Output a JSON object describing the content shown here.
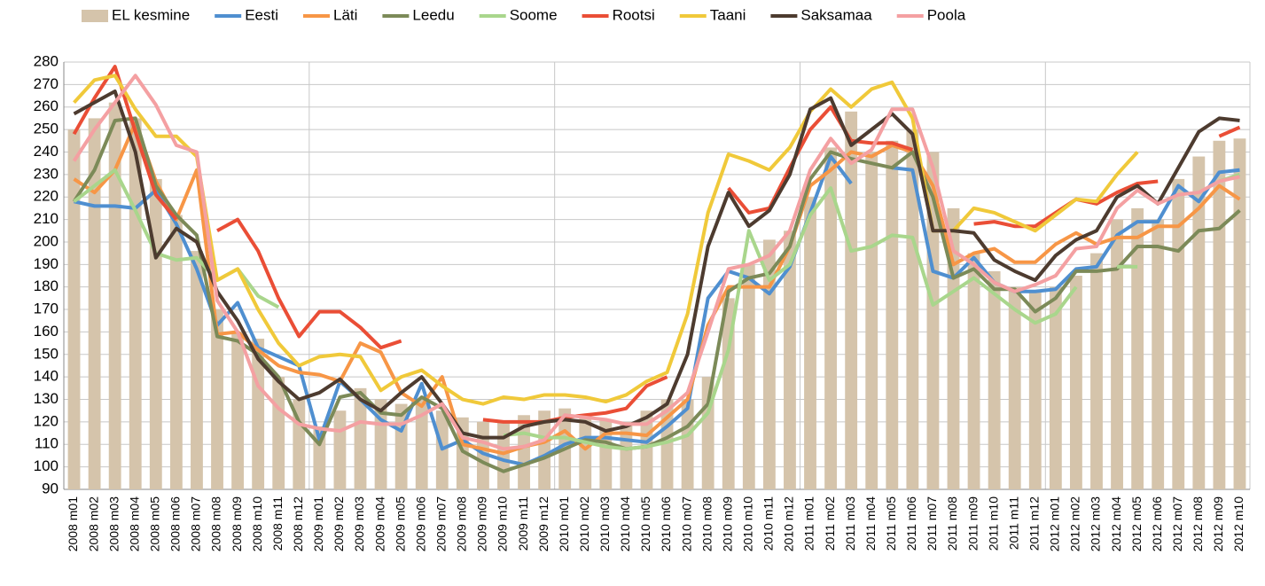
{
  "chart_data": {
    "type": "combo",
    "categories": [
      "2008 m01",
      "2008 m02",
      "2008 m03",
      "2008 m04",
      "2008 m05",
      "2008 m06",
      "2008 m07",
      "2008 m08",
      "2008 m09",
      "2008 m10",
      "2008 m11",
      "2008 m12",
      "2009 m01",
      "2009 m02",
      "2009 m03",
      "2009 m04",
      "2009 m05",
      "2009 m06",
      "2009 m07",
      "2009 m08",
      "2009 m09",
      "2009 m10",
      "2009 m11",
      "2009 m12",
      "2010 m01",
      "2010 m02",
      "2010 m03",
      "2010 m04",
      "2010 m05",
      "2010 m06",
      "2010 m07",
      "2010 m08",
      "2010 m09",
      "2010 m10",
      "2010 m11",
      "2010 m12",
      "2011 m01",
      "2011 m02",
      "2011 m03",
      "2011 m04",
      "2011 m05",
      "2011 m06",
      "2011 m07",
      "2011 m08",
      "2011 m09",
      "2011 m10",
      "2011 m11",
      "2011 m12",
      "2012 m01",
      "2012 m02",
      "2012 m03",
      "2012 m04",
      "2012 m05",
      "2012 m06",
      "2012 m07",
      "2012 m08",
      "2012 m09",
      "2012 m10"
    ],
    "series": [
      {
        "name": "EL kesmine",
        "mark": "bar",
        "color": "#d5c4ab",
        "values": [
          250,
          255,
          262,
          255,
          228,
          212,
          196,
          170,
          160,
          157,
          140,
          130,
          118,
          125,
          135,
          130,
          128,
          130,
          125,
          122,
          120,
          120,
          123,
          125,
          126,
          122,
          121,
          120,
          125,
          130,
          130,
          140,
          175,
          190,
          201,
          205,
          220,
          242,
          258,
          240,
          245,
          250,
          240,
          215,
          195,
          187,
          180,
          178,
          180,
          185,
          195,
          210,
          215,
          210,
          228,
          238,
          245,
          246
        ]
      },
      {
        "name": "Eesti",
        "mark": "line",
        "color": "#4f8fd0",
        "values": [
          218,
          216,
          216,
          215,
          223,
          208,
          188,
          163,
          173,
          153,
          149,
          145,
          112,
          138,
          130,
          121,
          116,
          137,
          108,
          112,
          106,
          103,
          101,
          105,
          110,
          113,
          113,
          112,
          111,
          118,
          126,
          175,
          187,
          184,
          177,
          189,
          213,
          238,
          226,
          null,
          233,
          232,
          187,
          184,
          193,
          182,
          178,
          178,
          179,
          188,
          189,
          203,
          209,
          209,
          225,
          218,
          231,
          232
        ]
      },
      {
        "name": "Läti",
        "mark": "line",
        "color": "#f79646",
        "values": [
          228,
          222,
          232,
          253,
          227,
          210,
          232,
          159,
          160,
          152,
          145,
          142,
          141,
          138,
          155,
          151,
          133,
          127,
          140,
          110,
          108,
          106,
          109,
          111,
          116,
          108,
          115,
          115,
          114,
          122,
          130,
          163,
          180,
          180,
          180,
          198,
          225,
          232,
          240,
          238,
          243,
          240,
          225,
          190,
          195,
          197,
          191,
          191,
          199,
          204,
          199,
          202,
          202,
          207,
          207,
          215,
          225,
          219
        ]
      },
      {
        "name": "Leedu",
        "mark": "line",
        "color": "#7c8a58",
        "values": [
          218,
          232,
          254,
          255,
          225,
          212,
          203,
          158,
          156,
          150,
          140,
          120,
          110,
          131,
          133,
          124,
          123,
          131,
          126,
          107,
          102,
          98,
          101,
          104,
          108,
          112,
          111,
          108,
          109,
          113,
          118,
          128,
          178,
          184,
          186,
          198,
          228,
          240,
          237,
          235,
          233,
          240,
          220,
          184,
          188,
          179,
          179,
          169,
          175,
          187,
          187,
          188,
          198,
          198,
          196,
          205,
          206,
          214
        ]
      },
      {
        "name": "Soome",
        "mark": "line",
        "color": "#a9d68c",
        "values": [
          218,
          225,
          232,
          214,
          195,
          192,
          193,
          183,
          188,
          176,
          171,
          null,
          null,
          null,
          null,
          null,
          null,
          null,
          null,
          null,
          null,
          114,
          115,
          113,
          113,
          111,
          109,
          108,
          109,
          111,
          114,
          124,
          152,
          205,
          183,
          190,
          212,
          224,
          196,
          198,
          203,
          202,
          172,
          178,
          184,
          177,
          170,
          164,
          168,
          180,
          null,
          189,
          189,
          null,
          null,
          null,
          227,
          230
        ]
      },
      {
        "name": "Rootsi",
        "mark": "line",
        "color": "#ea4e36",
        "values": [
          248,
          264,
          278,
          249,
          221,
          210,
          null,
          205,
          210,
          196,
          175,
          158,
          169,
          169,
          162,
          153,
          156,
          null,
          null,
          null,
          121,
          120,
          120,
          120,
          122,
          123,
          124,
          126,
          136,
          140,
          null,
          null,
          224,
          213,
          215,
          233,
          250,
          260,
          245,
          244,
          244,
          241,
          null,
          null,
          208,
          209,
          207,
          207,
          213,
          219,
          217,
          222,
          226,
          227,
          null,
          null,
          247,
          251
        ]
      },
      {
        "name": "Taani",
        "mark": "line",
        "color": "#f0c93a",
        "values": [
          262,
          272,
          274,
          259,
          247,
          247,
          238,
          183,
          188,
          170,
          155,
          145,
          149,
          150,
          149,
          134,
          140,
          143,
          136,
          130,
          128,
          131,
          130,
          132,
          132,
          131,
          129,
          132,
          138,
          142,
          168,
          213,
          239,
          236,
          232,
          242,
          258,
          268,
          260,
          268,
          271,
          255,
          205,
          205,
          215,
          213,
          209,
          205,
          212,
          219,
          218,
          230,
          240,
          null,
          null,
          null,
          null,
          null
        ]
      },
      {
        "name": "Saksamaa",
        "mark": "line",
        "color": "#4d3b2f",
        "values": [
          257,
          262,
          267,
          240,
          193,
          206,
          200,
          178,
          165,
          148,
          138,
          130,
          133,
          139,
          130,
          125,
          133,
          140,
          128,
          115,
          113,
          113,
          118,
          120,
          121,
          120,
          116,
          118,
          122,
          128,
          150,
          198,
          222,
          207,
          214,
          230,
          259,
          264,
          243,
          250,
          257,
          248,
          205,
          205,
          204,
          192,
          187,
          183,
          194,
          201,
          205,
          220,
          225,
          217,
          233,
          249,
          255,
          254
        ]
      },
      {
        "name": "Poola",
        "mark": "line",
        "color": "#f4a0a2",
        "values": [
          236,
          250,
          262,
          274,
          261,
          243,
          240,
          174,
          160,
          136,
          126,
          119,
          117,
          116,
          120,
          119,
          119,
          123,
          128,
          113,
          111,
          108,
          109,
          112,
          123,
          122,
          121,
          119,
          119,
          125,
          133,
          160,
          188,
          190,
          194,
          205,
          232,
          246,
          235,
          241,
          259,
          259,
          233,
          196,
          190,
          182,
          178,
          181,
          185,
          197,
          198,
          215,
          223,
          217,
          221,
          222,
          227,
          229
        ]
      }
    ],
    "ylim": [
      90,
      280
    ],
    "yticks": [
      90,
      100,
      110,
      120,
      130,
      140,
      150,
      160,
      170,
      180,
      190,
      200,
      210,
      220,
      230,
      240,
      250,
      260,
      270,
      280
    ],
    "grid": true,
    "legend": "top"
  }
}
